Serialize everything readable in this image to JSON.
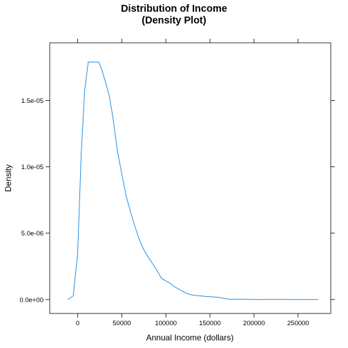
{
  "chart_data": {
    "type": "line",
    "title": [
      "Distribution of Income",
      "(Density Plot)"
    ],
    "xlabel": "Annual Income (dollars)",
    "ylabel": "Density",
    "xlim": [
      -31700,
      287000
    ],
    "ylim": [
      -1.05e-06,
      1.935e-05
    ],
    "x_ticks": [
      0,
      50000,
      100000,
      150000,
      200000,
      250000
    ],
    "x_tick_labels": [
      "0",
      "50000",
      "100000",
      "150000",
      "200000",
      "250000"
    ],
    "y_ticks": [
      0,
      5e-06,
      1e-05,
      1.5e-05
    ],
    "y_tick_labels": [
      "0.0e+00",
      "5.0e-06",
      "1.0e-05",
      "1.5e-05"
    ],
    "grid": false,
    "line_color": "#1f8fe8",
    "series": [
      {
        "x": [
          -11000,
          -5000,
          0,
          4000,
          8000,
          12000,
          16000,
          20000,
          24000,
          28000,
          32000,
          36000,
          40000,
          45000,
          50000,
          55000,
          60000,
          65000,
          70000,
          75000,
          80000,
          85000,
          90000,
          95000,
          100000,
          105000,
          110000,
          115000,
          120000,
          125000,
          130000,
          135000,
          140000,
          145000,
          150000,
          160000,
          165000,
          170000,
          175000,
          180000,
          190000,
          200000,
          210000,
          220000,
          230000,
          240000,
          250000,
          260000,
          273000
        ],
        "y": [
          0.0,
          2.8e-07,
          3.5e-06,
          1.1e-05,
          1.58e-05,
          1.79e-05,
          1.79e-05,
          1.79e-05,
          1.79e-05,
          1.72e-05,
          1.63e-05,
          1.53e-05,
          1.37e-05,
          1.12e-05,
          9.5e-06,
          7.8e-06,
          6.6e-06,
          5.5e-06,
          4.5e-06,
          3.75e-06,
          3.2e-06,
          2.7e-06,
          2.2e-06,
          1.6e-06,
          1.4e-06,
          1.22e-06,
          9.5e-07,
          7.8e-07,
          5.9e-07,
          4.3e-07,
          3.4e-07,
          3e-07,
          2.7e-07,
          2.3e-07,
          2.1e-07,
          1.7e-07,
          1e-07,
          4e-08,
          2e-08,
          2e-08,
          2e-08,
          1e-08,
          0.0,
          1e-08,
          1e-08,
          0.0,
          0.0,
          0.0,
          0.0
        ]
      }
    ]
  }
}
